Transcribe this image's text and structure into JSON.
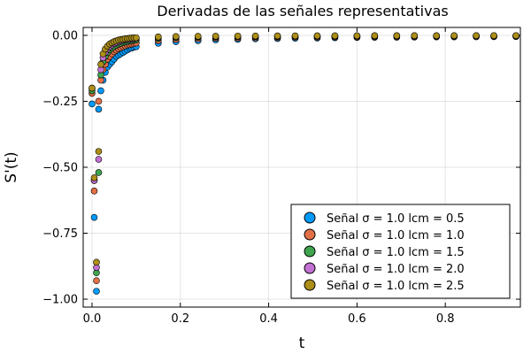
{
  "chart_data": {
    "type": "scatter",
    "title": "Derivadas de las señales representativas",
    "xlabel": "t",
    "ylabel": "S'(t)",
    "xlim": [
      -0.02,
      0.97
    ],
    "ylim": [
      -1.03,
      0.03
    ],
    "xticks": [
      0.0,
      0.2,
      0.4,
      0.6,
      0.8
    ],
    "xtick_labels": [
      "0.0",
      "0.2",
      "0.4",
      "0.6",
      "0.8"
    ],
    "yticks": [
      0.0,
      -0.25,
      -0.5,
      -0.75,
      -1.0
    ],
    "ytick_labels": [
      "0.00",
      "−0.25",
      "−0.50",
      "−0.75",
      "−1.00"
    ],
    "grid": true,
    "legend_position": "bottom-right",
    "series": [
      {
        "name": "Señal σ = 1.0 lcm = 0.5",
        "color": "#009AFA",
        "x": [
          0.0,
          0.005,
          0.01,
          0.015,
          0.02,
          0.025,
          0.03,
          0.035,
          0.04,
          0.045,
          0.05,
          0.055,
          0.06,
          0.065,
          0.07,
          0.075,
          0.08,
          0.085,
          0.09,
          0.095,
          0.1,
          0.15,
          0.19,
          0.24,
          0.28,
          0.33,
          0.37,
          0.42,
          0.46,
          0.51,
          0.55,
          0.6,
          0.64,
          0.69,
          0.73,
          0.78,
          0.82,
          0.87,
          0.91,
          0.96
        ],
        "y": [
          -0.26,
          -0.69,
          -0.97,
          -0.28,
          -0.21,
          -0.17,
          -0.14,
          -0.12,
          -0.11,
          -0.1,
          -0.09,
          -0.08,
          -0.075,
          -0.07,
          -0.065,
          -0.06,
          -0.055,
          -0.05,
          -0.048,
          -0.045,
          -0.043,
          -0.03,
          -0.024,
          -0.02,
          -0.017,
          -0.015,
          -0.013,
          -0.012,
          -0.011,
          -0.01,
          -0.009,
          -0.008,
          -0.0075,
          -0.007,
          -0.0065,
          -0.006,
          -0.0057,
          -0.0054,
          -0.0051,
          -0.0048
        ]
      },
      {
        "name": "Señal σ = 1.0 lcm = 1.0",
        "color": "#E26F46",
        "x": [
          0.0,
          0.005,
          0.01,
          0.015,
          0.02,
          0.025,
          0.03,
          0.035,
          0.04,
          0.045,
          0.05,
          0.055,
          0.06,
          0.065,
          0.07,
          0.075,
          0.08,
          0.085,
          0.09,
          0.095,
          0.1,
          0.15,
          0.19,
          0.24,
          0.28,
          0.33,
          0.37,
          0.42,
          0.46,
          0.51,
          0.55,
          0.6,
          0.64,
          0.69,
          0.73,
          0.78,
          0.82,
          0.87,
          0.91,
          0.96
        ],
        "y": [
          -0.22,
          -0.59,
          -0.93,
          -0.25,
          -0.17,
          -0.13,
          -0.11,
          -0.09,
          -0.08,
          -0.07,
          -0.062,
          -0.056,
          -0.051,
          -0.047,
          -0.043,
          -0.04,
          -0.037,
          -0.035,
          -0.033,
          -0.031,
          -0.029,
          -0.02,
          -0.016,
          -0.013,
          -0.011,
          -0.01,
          -0.009,
          -0.008,
          -0.0073,
          -0.0067,
          -0.0062,
          -0.0057,
          -0.0054,
          -0.005,
          -0.0047,
          -0.0045,
          -0.0042,
          -0.004,
          -0.0038,
          -0.0036
        ]
      },
      {
        "name": "Señal σ = 1.0 lcm = 1.5",
        "color": "#3EA44E",
        "x": [
          0.0,
          0.005,
          0.01,
          0.015,
          0.02,
          0.025,
          0.03,
          0.035,
          0.04,
          0.045,
          0.05,
          0.055,
          0.06,
          0.065,
          0.07,
          0.075,
          0.08,
          0.085,
          0.09,
          0.095,
          0.1,
          0.15,
          0.19,
          0.24,
          0.28,
          0.33,
          0.37,
          0.42,
          0.46,
          0.51,
          0.55,
          0.6,
          0.64,
          0.69,
          0.73,
          0.78,
          0.82,
          0.87,
          0.91,
          0.96
        ],
        "y": [
          -0.21,
          -0.55,
          -0.9,
          -0.52,
          -0.15,
          -0.1,
          -0.08,
          -0.065,
          -0.055,
          -0.048,
          -0.042,
          -0.037,
          -0.033,
          -0.03,
          -0.027,
          -0.025,
          -0.023,
          -0.021,
          -0.02,
          -0.019,
          -0.018,
          -0.012,
          -0.009,
          -0.0075,
          -0.0065,
          -0.0055,
          -0.005,
          -0.0045,
          -0.004,
          -0.0037,
          -0.0034,
          -0.0031,
          -0.0029,
          -0.0027,
          -0.0026,
          -0.0024,
          -0.0023,
          -0.0022,
          -0.0021,
          -0.002
        ]
      },
      {
        "name": "Señal σ = 1.0 lcm = 2.0",
        "color": "#C270D2",
        "x": [
          0.0,
          0.005,
          0.01,
          0.015,
          0.02,
          0.025,
          0.03,
          0.035,
          0.04,
          0.045,
          0.05,
          0.055,
          0.06,
          0.065,
          0.07,
          0.075,
          0.08,
          0.085,
          0.09,
          0.095,
          0.1,
          0.15,
          0.19,
          0.24,
          0.28,
          0.33,
          0.37,
          0.42,
          0.46,
          0.51,
          0.55,
          0.6,
          0.64,
          0.69,
          0.73,
          0.78,
          0.82,
          0.87,
          0.91,
          0.96
        ],
        "y": [
          -0.2,
          -0.55,
          -0.88,
          -0.47,
          -0.13,
          -0.085,
          -0.065,
          -0.052,
          -0.043,
          -0.036,
          -0.031,
          -0.027,
          -0.024,
          -0.021,
          -0.019,
          -0.017,
          -0.016,
          -0.015,
          -0.014,
          -0.013,
          -0.012,
          -0.008,
          -0.006,
          -0.005,
          -0.0043,
          -0.0037,
          -0.0033,
          -0.003,
          -0.0027,
          -0.0025,
          -0.0023,
          -0.0021,
          -0.002,
          -0.0018,
          -0.0017,
          -0.0016,
          -0.0015,
          -0.0014,
          -0.0014,
          -0.0013
        ]
      },
      {
        "name": "Señal σ = 1.0 lcm = 2.5",
        "color": "#AC8E18",
        "x": [
          0.0,
          0.005,
          0.01,
          0.015,
          0.02,
          0.025,
          0.03,
          0.035,
          0.04,
          0.045,
          0.05,
          0.055,
          0.06,
          0.065,
          0.07,
          0.075,
          0.08,
          0.085,
          0.09,
          0.095,
          0.1,
          0.15,
          0.19,
          0.24,
          0.28,
          0.33,
          0.37,
          0.42,
          0.46,
          0.51,
          0.55,
          0.6,
          0.64,
          0.69,
          0.73,
          0.78,
          0.82,
          0.87,
          0.91,
          0.96
        ],
        "y": [
          -0.2,
          -0.54,
          -0.86,
          -0.44,
          -0.11,
          -0.07,
          -0.052,
          -0.041,
          -0.033,
          -0.028,
          -0.024,
          -0.021,
          -0.018,
          -0.016,
          -0.015,
          -0.013,
          -0.012,
          -0.011,
          -0.01,
          -0.0095,
          -0.009,
          -0.006,
          -0.0045,
          -0.0037,
          -0.0032,
          -0.0027,
          -0.0024,
          -0.0022,
          -0.002,
          -0.0018,
          -0.0017,
          -0.0015,
          -0.0014,
          -0.0013,
          -0.0012,
          -0.0012,
          -0.0011,
          -0.0011,
          -0.001,
          -0.001
        ]
      }
    ]
  }
}
